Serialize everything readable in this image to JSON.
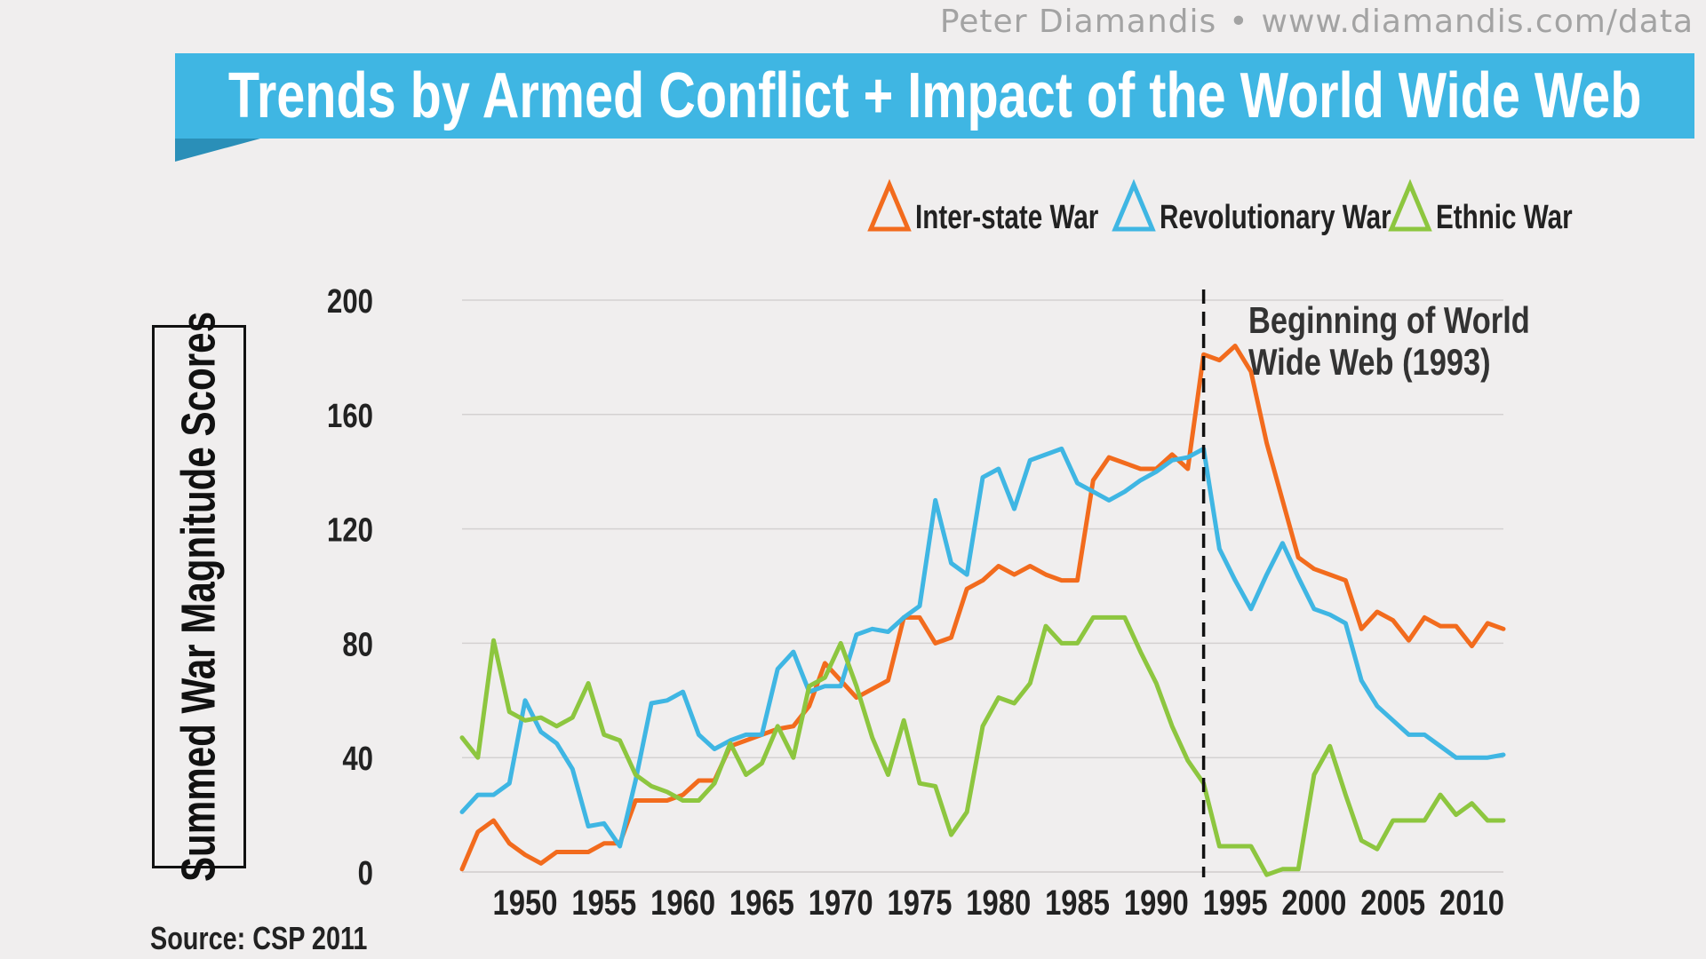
{
  "header": {
    "author": "Peter Diamandis",
    "separator": "•",
    "website": "www.diamandis.com/data"
  },
  "banner": {
    "title": "Trends by Armed Conflict + Impact of the World Wide Web",
    "color": "#3fb6e3"
  },
  "source": "Source: CSP 2011",
  "chart_data": {
    "type": "line",
    "title": "Trends by Armed Conflict + Impact of the World Wide Web",
    "xlabel": "",
    "ylabel": "Summed War Magnitude Scores",
    "xlim": [
      1946,
      2012
    ],
    "ylim": [
      0,
      200
    ],
    "yticks": [
      0,
      40,
      80,
      120,
      160,
      200
    ],
    "xticks": [
      1950,
      1955,
      1960,
      1965,
      1970,
      1975,
      1980,
      1985,
      1990,
      1995,
      2000,
      2005,
      2010
    ],
    "grid": true,
    "legend_position": "top-right",
    "x": [
      1946,
      1947,
      1948,
      1949,
      1950,
      1951,
      1952,
      1953,
      1954,
      1955,
      1956,
      1957,
      1958,
      1959,
      1960,
      1961,
      1962,
      1963,
      1964,
      1965,
      1966,
      1967,
      1968,
      1969,
      1970,
      1971,
      1972,
      1973,
      1974,
      1975,
      1976,
      1977,
      1978,
      1979,
      1980,
      1981,
      1982,
      1983,
      1984,
      1985,
      1986,
      1987,
      1988,
      1989,
      1990,
      1991,
      1992,
      1993,
      1994,
      1995,
      1996,
      1997,
      1998,
      1999,
      2000,
      2001,
      2002,
      2003,
      2004,
      2005,
      2006,
      2007,
      2008,
      2009,
      2010,
      2011,
      2012
    ],
    "series": [
      {
        "name": "Inter-state War",
        "color": "#f26b1d",
        "values": [
          1,
          14,
          18,
          10,
          6,
          3,
          7,
          7,
          7,
          10,
          10,
          25,
          25,
          25,
          27,
          32,
          32,
          44,
          46,
          48,
          50,
          51,
          58,
          73,
          67,
          61,
          64,
          67,
          89,
          89,
          80,
          82,
          99,
          102,
          107,
          104,
          107,
          104,
          102,
          102,
          137,
          145,
          143,
          141,
          141,
          146,
          141,
          181,
          179,
          184,
          175,
          150,
          130,
          110,
          106,
          104,
          102,
          85,
          91,
          88,
          81,
          89,
          86,
          86,
          79,
          87,
          85
        ]
      },
      {
        "name": "Revolutionary War",
        "color": "#3fb6e3",
        "values": [
          21,
          27,
          27,
          31,
          60,
          49,
          45,
          36,
          16,
          17,
          9,
          32,
          59,
          60,
          63,
          48,
          43,
          46,
          48,
          48,
          71,
          77,
          63,
          65,
          65,
          83,
          85,
          84,
          89,
          93,
          130,
          108,
          104,
          138,
          141,
          127,
          144,
          146,
          148,
          136,
          133,
          130,
          133,
          137,
          140,
          144,
          145,
          148,
          113,
          102,
          92,
          104,
          115,
          103,
          92,
          90,
          87,
          67,
          58,
          53,
          48,
          48,
          44,
          40,
          40,
          40,
          41
        ]
      },
      {
        "name": "Ethnic War",
        "color": "#8dc63f",
        "values": [
          47,
          40,
          81,
          56,
          53,
          54,
          51,
          54,
          66,
          48,
          46,
          34,
          30,
          28,
          25,
          25,
          31,
          45,
          34,
          38,
          51,
          40,
          65,
          68,
          80,
          65,
          47,
          34,
          53,
          31,
          30,
          13,
          21,
          51,
          61,
          59,
          66,
          86,
          80,
          80,
          89,
          89,
          89,
          77,
          66,
          51,
          39,
          31,
          9,
          9,
          9,
          -1,
          1,
          1,
          34,
          44,
          27,
          11,
          8,
          18,
          18,
          18,
          27,
          20,
          24,
          18,
          18
        ]
      }
    ],
    "annotations": [
      {
        "x": 1993,
        "type": "vline",
        "line1": "Beginning of World",
        "line2": "Wide Web (1993)"
      }
    ]
  }
}
